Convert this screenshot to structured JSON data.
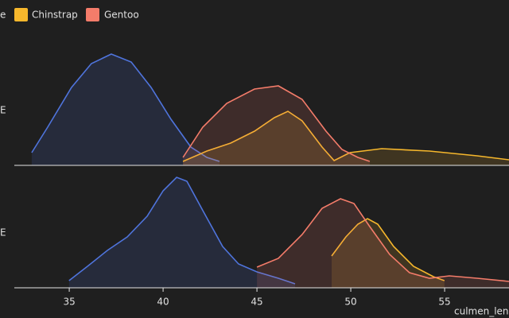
{
  "chart_data": {
    "type": "area",
    "xlabel": "culmen_leng",
    "legend": [
      {
        "name": "e",
        "color": "#4f74dc"
      },
      {
        "name": "Chinstrap",
        "color": "#f6b72c"
      },
      {
        "name": "Gentoo",
        "color": "#f47c6a"
      }
    ],
    "xlim": [
      31.31,
      58.43
    ],
    "xticks": [
      35,
      40,
      45,
      50,
      55
    ],
    "ylim": [
      0,
      0.15
    ],
    "panels": [
      {
        "label": "E",
        "series": [
          {
            "x": [
              33.0,
              33.85,
              35.12,
              36.18,
              37.24,
              38.3,
              39.36,
              40.42,
              41.48,
              42.33,
              43.0
            ],
            "values": [
              0.016,
              0.048,
              0.098,
              0.128,
              0.14,
              0.13,
              0.098,
              0.058,
              0.023,
              0.01,
              0.005
            ]
          },
          {
            "x": [
              41.06,
              42.33,
              43.6,
              44.87,
              45.93,
              46.65,
              47.41,
              48.47,
              49.11,
              49.95,
              51.65,
              54.19,
              56.73,
              58.43
            ],
            "values": [
              0.005,
              0.018,
              0.028,
              0.043,
              0.06,
              0.068,
              0.056,
              0.023,
              0.006,
              0.016,
              0.021,
              0.018,
              0.012,
              0.007
            ]
          },
          {
            "x": [
              41.06,
              42.11,
              43.39,
              44.87,
              46.14,
              47.41,
              48.68,
              49.53,
              50.38,
              51.01
            ],
            "values": [
              0.01,
              0.048,
              0.078,
              0.096,
              0.1,
              0.083,
              0.043,
              0.02,
              0.01,
              0.005
            ]
          }
        ]
      },
      {
        "label": "E",
        "series": [
          {
            "x": [
              34.99,
              35.97,
              37.03,
              38.09,
              39.15,
              40.0,
              40.72,
              41.27,
              42.12,
              43.17,
              44.02,
              45.0,
              46.14,
              47.03
            ],
            "values": [
              0.009,
              0.027,
              0.047,
              0.064,
              0.09,
              0.122,
              0.139,
              0.134,
              0.097,
              0.052,
              0.03,
              0.02,
              0.012,
              0.005
            ]
          },
          {
            "x": [
              48.98,
              49.74,
              50.38,
              50.89,
              51.44,
              52.28,
              53.34,
              54.4,
              54.99
            ],
            "values": [
              0.04,
              0.064,
              0.08,
              0.087,
              0.08,
              0.052,
              0.027,
              0.014,
              0.009
            ]
          },
          {
            "x": [
              45.0,
              46.14,
              47.41,
              48.47,
              49.45,
              50.17,
              51.01,
              52.07,
              53.13,
              54.19,
              55.25,
              56.73,
              58.43
            ],
            "values": [
              0.026,
              0.037,
              0.067,
              0.1,
              0.112,
              0.106,
              0.077,
              0.042,
              0.019,
              0.012,
              0.015,
              0.012,
              0.008
            ]
          }
        ]
      }
    ]
  }
}
